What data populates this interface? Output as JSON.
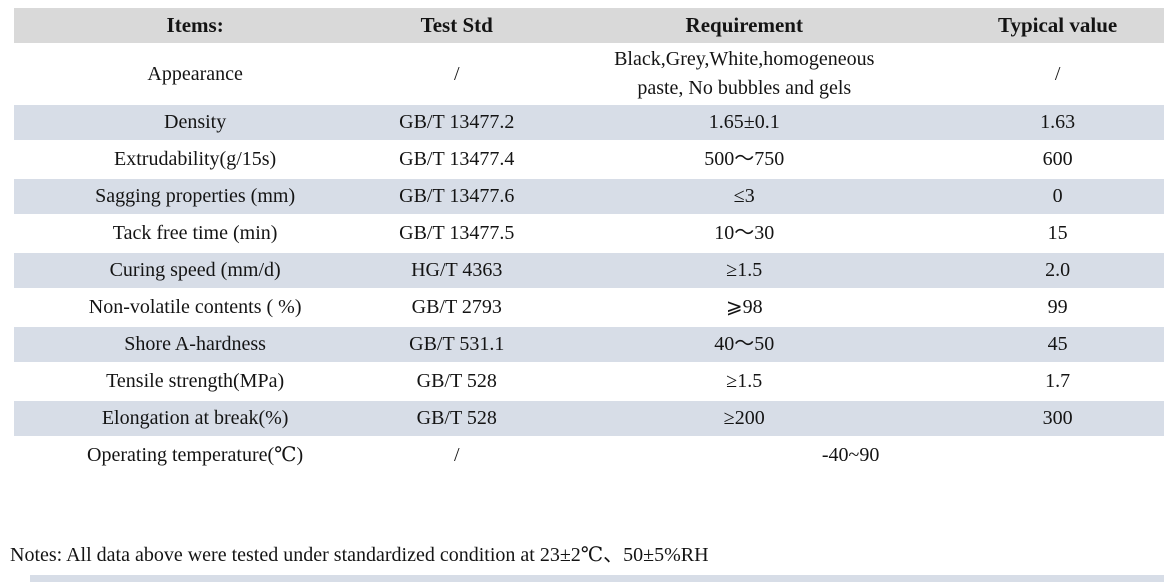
{
  "table": {
    "headers": {
      "items": "Items:",
      "test_std": "Test Std",
      "requirement": "Requirement",
      "typical_value": "Typical value"
    },
    "rows": [
      {
        "item": "Appearance",
        "test_std": "/",
        "requirement": "Black,Grey,White,homogeneous\npaste, No bubbles and gels",
        "typical_value": "/"
      },
      {
        "item": "Density",
        "test_std": "GB/T 13477.2",
        "requirement": "1.65±0.1",
        "typical_value": "1.63"
      },
      {
        "item": "Extrudability(g/15s)",
        "test_std": "GB/T 13477.4",
        "requirement": "500～750",
        "typical_value": "600"
      },
      {
        "item": "Sagging properties (mm)",
        "test_std": "GB/T 13477.6",
        "requirement": "≤3",
        "typical_value": "0"
      },
      {
        "item": "Tack free time (min)",
        "test_std": "GB/T 13477.5",
        "requirement": "10～30",
        "typical_value": "15"
      },
      {
        "item": "Curing speed (mm/d)",
        "test_std": "HG/T 4363",
        "requirement": "≥1.5",
        "typical_value": "2.0"
      },
      {
        "item": "Non-volatile contents ( %)",
        "test_std": "GB/T 2793",
        "requirement": "⩾98",
        "typical_value": "99"
      },
      {
        "item": "Shore A-hardness",
        "test_std": "GB/T 531.1",
        "requirement": "40～50",
        "typical_value": "45"
      },
      {
        "item": "Tensile strength(MPa)",
        "test_std": "GB/T 528",
        "requirement": "≥1.5",
        "typical_value": "1.7"
      },
      {
        "item": "Elongation at break(%)",
        "test_std": "GB/T 528",
        "requirement": "≥200",
        "typical_value": "300"
      },
      {
        "item": "Operating temperature(℃)",
        "test_std": "/",
        "requirement": "-40~90"
      }
    ]
  },
  "notes": "Notes: All data above were tested under standardized condition at 23±2℃、50±5%RH",
  "colors": {
    "header_bg": "#d9d9d9",
    "shaded_row_bg": "#d7dde7",
    "text": "#141414",
    "page_bg": "#ffffff"
  }
}
